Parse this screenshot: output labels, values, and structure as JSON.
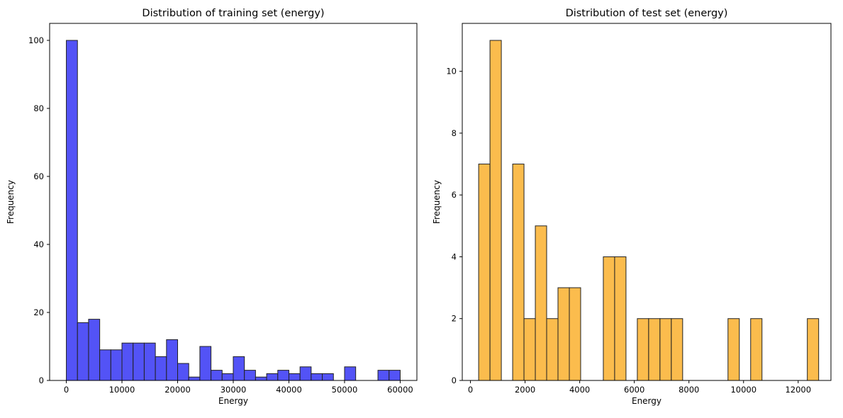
{
  "chart_data": [
    {
      "type": "bar",
      "title": "Distribution of training set (energy)",
      "xlabel": "Energy",
      "ylabel": "Frequency",
      "color": "#4a4af6",
      "edge_color": "#222222",
      "x_ticks": [
        0,
        10000,
        20000,
        30000,
        40000,
        50000,
        60000
      ],
      "x_tick_labels": [
        "0",
        "10000",
        "20000",
        "30000",
        "40000",
        "50000",
        "60000"
      ],
      "y_ticks": [
        0,
        20,
        40,
        60,
        80,
        100
      ],
      "y_tick_labels": [
        "0",
        "20",
        "40",
        "60",
        "80",
        "100"
      ],
      "xlim": [
        -3000,
        63000
      ],
      "ylim": [
        0,
        105
      ],
      "bin_start": 0,
      "bin_width": 2000,
      "values": [
        100,
        17,
        18,
        9,
        9,
        11,
        11,
        11,
        7,
        12,
        5,
        1,
        10,
        3,
        2,
        7,
        3,
        1,
        2,
        3,
        2,
        4,
        2,
        2,
        0,
        4,
        0,
        0,
        3,
        3
      ]
    },
    {
      "type": "bar",
      "title": "Distribution of test set (energy)",
      "xlabel": "Energy",
      "ylabel": "Frequency",
      "color": "#fbb843",
      "edge_color": "#222222",
      "x_ticks": [
        0,
        2000,
        4000,
        6000,
        8000,
        10000,
        12000
      ],
      "x_tick_labels": [
        "0",
        "2000",
        "4000",
        "6000",
        "8000",
        "10000",
        "12000"
      ],
      "y_ticks": [
        0,
        2,
        4,
        6,
        8,
        10
      ],
      "y_tick_labels": [
        "0",
        "2",
        "4",
        "6",
        "8",
        "10"
      ],
      "xlim": [
        -300,
        13200
      ],
      "ylim": [
        0,
        11.55
      ],
      "bin_start": 300,
      "bin_width": 415,
      "values": [
        7,
        11,
        0,
        7,
        2,
        5,
        2,
        3,
        3,
        0,
        0,
        4,
        4,
        0,
        2,
        2,
        2,
        2,
        0,
        0,
        0,
        0,
        2,
        0,
        2,
        0,
        0,
        0,
        0,
        2
      ]
    }
  ]
}
